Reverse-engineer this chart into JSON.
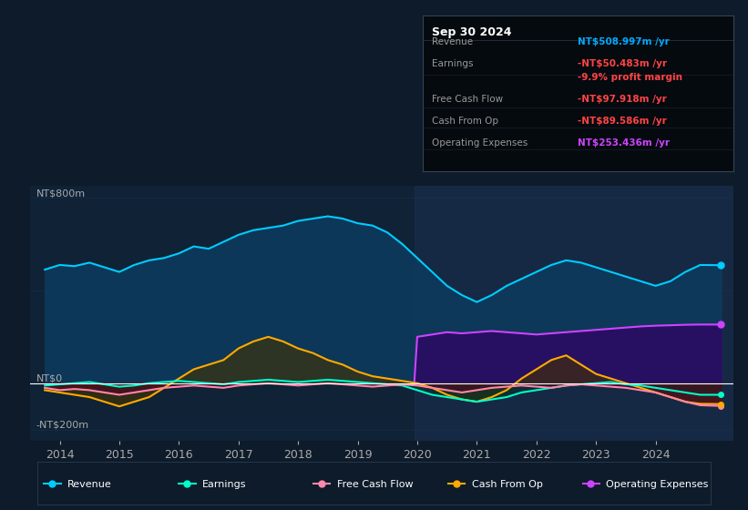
{
  "bg_color": "#0d1b2a",
  "plot_bg_color": "#0f2236",
  "title_box": {
    "date": "Sep 30 2024",
    "rows": [
      {
        "label": "Revenue",
        "value": "NT$508.997m /yr",
        "value_color": "#00aaff"
      },
      {
        "label": "Earnings",
        "value": "-NT$50.483m /yr",
        "value_color": "#ff4444"
      },
      {
        "label": "",
        "value": "-9.9% profit margin",
        "value_color": "#ff4444"
      },
      {
        "label": "Free Cash Flow",
        "value": "-NT$97.918m /yr",
        "value_color": "#ff4444"
      },
      {
        "label": "Cash From Op",
        "value": "-NT$89.586m /yr",
        "value_color": "#ff4444"
      },
      {
        "label": "Operating Expenses",
        "value": "NT$253.436m /yr",
        "value_color": "#cc44ff"
      }
    ]
  },
  "ylabel_top": "NT$800m",
  "ylabel_zero": "NT$0",
  "ylabel_neg": "-NT$200m",
  "ylim": [
    -250,
    850
  ],
  "xlim": [
    2013.5,
    2025.3
  ],
  "x_ticks": [
    2014,
    2015,
    2016,
    2017,
    2018,
    2019,
    2020,
    2021,
    2022,
    2023,
    2024
  ],
  "revenue": {
    "x": [
      2013.75,
      2014.0,
      2014.25,
      2014.5,
      2014.75,
      2015.0,
      2015.25,
      2015.5,
      2015.75,
      2016.0,
      2016.25,
      2016.5,
      2016.75,
      2017.0,
      2017.25,
      2017.5,
      2017.75,
      2018.0,
      2018.25,
      2018.5,
      2018.75,
      2019.0,
      2019.25,
      2019.5,
      2019.75,
      2020.0,
      2020.25,
      2020.5,
      2020.75,
      2021.0,
      2021.25,
      2021.5,
      2021.75,
      2022.0,
      2022.25,
      2022.5,
      2022.75,
      2023.0,
      2023.25,
      2023.5,
      2023.75,
      2024.0,
      2024.25,
      2024.5,
      2024.75,
      2025.1
    ],
    "y": [
      490,
      510,
      505,
      520,
      500,
      480,
      510,
      530,
      540,
      560,
      590,
      580,
      610,
      640,
      660,
      670,
      680,
      700,
      710,
      720,
      710,
      690,
      680,
      650,
      600,
      540,
      480,
      420,
      380,
      350,
      380,
      420,
      450,
      480,
      510,
      530,
      520,
      500,
      480,
      460,
      440,
      420,
      440,
      480,
      510,
      509
    ],
    "line_color": "#00ccff",
    "fill_color": "#0d3a5c",
    "fill_alpha": 0.9,
    "linewidth": 1.5
  },
  "earnings": {
    "x": [
      2013.75,
      2014.0,
      2014.25,
      2014.5,
      2014.75,
      2015.0,
      2015.25,
      2015.5,
      2015.75,
      2016.0,
      2016.25,
      2016.5,
      2016.75,
      2017.0,
      2017.25,
      2017.5,
      2017.75,
      2018.0,
      2018.25,
      2018.5,
      2018.75,
      2019.0,
      2019.25,
      2019.5,
      2019.75,
      2020.0,
      2020.25,
      2020.5,
      2020.75,
      2021.0,
      2021.25,
      2021.5,
      2021.75,
      2022.0,
      2022.25,
      2022.5,
      2022.75,
      2023.0,
      2023.25,
      2023.5,
      2023.75,
      2024.0,
      2024.25,
      2024.5,
      2024.75,
      2025.1
    ],
    "y": [
      -10,
      -5,
      0,
      5,
      -5,
      -15,
      -10,
      0,
      5,
      10,
      5,
      0,
      -5,
      5,
      10,
      15,
      10,
      5,
      10,
      15,
      10,
      5,
      0,
      -5,
      -10,
      -30,
      -50,
      -60,
      -70,
      -80,
      -70,
      -60,
      -40,
      -30,
      -20,
      -10,
      -5,
      0,
      5,
      -5,
      -10,
      -20,
      -30,
      -40,
      -50,
      -50
    ],
    "line_color": "#00ffcc",
    "fill_color": "#003322",
    "fill_alpha": 0.5,
    "linewidth": 1.5
  },
  "free_cash_flow": {
    "x": [
      2013.75,
      2014.0,
      2014.25,
      2014.5,
      2014.75,
      2015.0,
      2015.25,
      2015.5,
      2015.75,
      2016.0,
      2016.25,
      2016.5,
      2016.75,
      2017.0,
      2017.25,
      2017.5,
      2017.75,
      2018.0,
      2018.25,
      2018.5,
      2018.75,
      2019.0,
      2019.25,
      2019.5,
      2019.75,
      2020.0,
      2020.25,
      2020.5,
      2020.75,
      2021.0,
      2021.25,
      2021.5,
      2021.75,
      2022.0,
      2022.25,
      2022.5,
      2022.75,
      2023.0,
      2023.25,
      2023.5,
      2023.75,
      2024.0,
      2024.25,
      2024.5,
      2024.75,
      2025.1
    ],
    "y": [
      -20,
      -30,
      -25,
      -30,
      -40,
      -50,
      -40,
      -30,
      -20,
      -15,
      -10,
      -15,
      -20,
      -10,
      -5,
      0,
      -5,
      -10,
      -5,
      0,
      -5,
      -10,
      -15,
      -10,
      -5,
      -10,
      -20,
      -30,
      -40,
      -30,
      -20,
      -15,
      -10,
      -15,
      -20,
      -10,
      -5,
      -10,
      -15,
      -20,
      -30,
      -40,
      -60,
      -80,
      -95,
      -98
    ],
    "line_color": "#ff88aa",
    "fill_color": "#550022",
    "fill_alpha": 0.5,
    "linewidth": 1.5
  },
  "cash_from_op": {
    "x": [
      2013.75,
      2014.0,
      2014.25,
      2014.5,
      2014.75,
      2015.0,
      2015.25,
      2015.5,
      2015.75,
      2016.0,
      2016.25,
      2016.5,
      2016.75,
      2017.0,
      2017.25,
      2017.5,
      2017.75,
      2018.0,
      2018.25,
      2018.5,
      2018.75,
      2019.0,
      2019.25,
      2019.5,
      2019.75,
      2020.0,
      2020.25,
      2020.5,
      2020.75,
      2021.0,
      2021.25,
      2021.5,
      2021.75,
      2022.0,
      2022.25,
      2022.5,
      2022.75,
      2023.0,
      2023.25,
      2023.5,
      2023.75,
      2024.0,
      2024.25,
      2024.5,
      2024.75,
      2025.1
    ],
    "y": [
      -30,
      -40,
      -50,
      -60,
      -80,
      -100,
      -80,
      -60,
      -20,
      20,
      60,
      80,
      100,
      150,
      180,
      200,
      180,
      150,
      130,
      100,
      80,
      50,
      30,
      20,
      10,
      0,
      -20,
      -50,
      -70,
      -80,
      -60,
      -30,
      20,
      60,
      100,
      120,
      80,
      40,
      20,
      0,
      -20,
      -40,
      -60,
      -80,
      -89,
      -90
    ],
    "line_color": "#ffaa00",
    "fill_color": "#443300",
    "fill_alpha": 0.6,
    "linewidth": 1.5
  },
  "operating_expenses": {
    "x": [
      2019.95,
      2020.0,
      2020.25,
      2020.5,
      2020.75,
      2021.0,
      2021.25,
      2021.5,
      2021.75,
      2022.0,
      2022.25,
      2022.5,
      2022.75,
      2023.0,
      2023.25,
      2023.5,
      2023.75,
      2024.0,
      2024.25,
      2024.5,
      2024.75,
      2025.1
    ],
    "y": [
      0,
      200,
      210,
      220,
      215,
      220,
      225,
      220,
      215,
      210,
      215,
      220,
      225,
      230,
      235,
      240,
      245,
      248,
      250,
      252,
      253,
      253
    ],
    "line_color": "#cc44ff",
    "fill_color": "#330066",
    "fill_alpha": 0.7,
    "linewidth": 1.5
  },
  "zero_line_color": "#ffffff",
  "grid_color": "#1a3050",
  "highlight_rect_color": "#1a2d4a",
  "legend": [
    {
      "label": "Revenue",
      "color": "#00ccff"
    },
    {
      "label": "Earnings",
      "color": "#00ffcc"
    },
    {
      "label": "Free Cash Flow",
      "color": "#ff88aa"
    },
    {
      "label": "Cash From Op",
      "color": "#ffaa00"
    },
    {
      "label": "Operating Expenses",
      "color": "#cc44ff"
    }
  ]
}
